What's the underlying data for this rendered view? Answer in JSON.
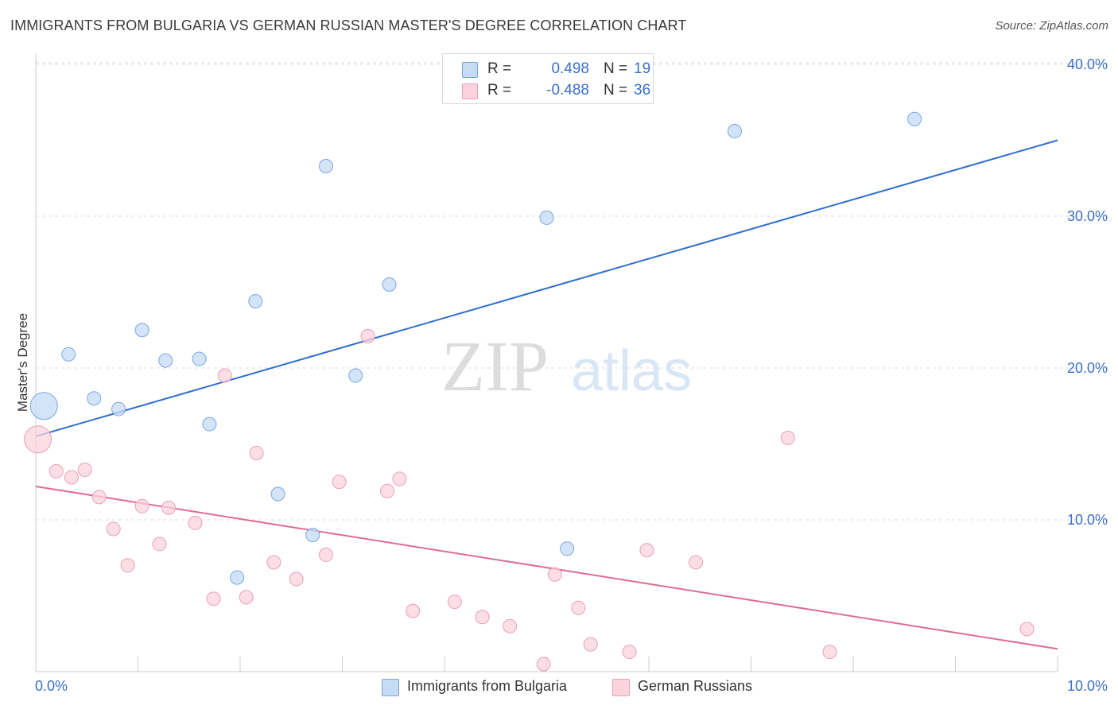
{
  "header": {
    "title": "IMMIGRANTS FROM BULGARIA VS GERMAN RUSSIAN MASTER'S DEGREE CORRELATION CHART",
    "source": "Source: ZipAtlas.com"
  },
  "watermark": {
    "zip": "ZIP",
    "atlas": "atlas"
  },
  "stats": [
    {
      "r_label": "R =",
      "r_value": "0.498",
      "n_label": "N =",
      "n_value": "19",
      "color": "#a9c8f0"
    },
    {
      "r_label": "R =",
      "r_value": "-0.488",
      "n_label": "N =",
      "n_value": "36",
      "color": "#f5b8c8"
    }
  ],
  "legend": [
    {
      "label": "Immigrants from Bulgaria",
      "color": "#a9c8f0"
    },
    {
      "label": "German Russians",
      "color": "#f5b8c8"
    }
  ],
  "chart_data": {
    "type": "scatter",
    "title": "IMMIGRANTS FROM BULGARIA VS GERMAN RUSSIAN MASTER'S DEGREE CORRELATION CHART",
    "xlabel": "",
    "ylabel": "Master's Degree",
    "xlim": [
      0,
      10
    ],
    "ylim": [
      0,
      42
    ],
    "x_tick_labels": [
      "0.0%",
      "10.0%"
    ],
    "y_ticks": [
      10,
      20,
      30,
      40
    ],
    "y_tick_labels": [
      "10.0%",
      "20.0%",
      "30.0%",
      "40.0%"
    ],
    "grid": true,
    "series": [
      {
        "name": "Immigrants from Bulgaria",
        "color": "#a9c8f0",
        "stroke": "#7aa6e0",
        "line_color": "#2e6fcc",
        "trend": {
          "x": [
            0,
            10
          ],
          "y": [
            15.5,
            35.0
          ]
        },
        "points": [
          {
            "x": 0.08,
            "y": 17.5,
            "big": true
          },
          {
            "x": 0.32,
            "y": 20.9
          },
          {
            "x": 0.57,
            "y": 18.0
          },
          {
            "x": 0.81,
            "y": 17.3
          },
          {
            "x": 1.04,
            "y": 22.5
          },
          {
            "x": 1.27,
            "y": 20.5
          },
          {
            "x": 1.6,
            "y": 20.6
          },
          {
            "x": 1.7,
            "y": 16.3
          },
          {
            "x": 2.15,
            "y": 24.4
          },
          {
            "x": 2.37,
            "y": 11.7
          },
          {
            "x": 1.97,
            "y": 6.2
          },
          {
            "x": 2.71,
            "y": 9.0
          },
          {
            "x": 2.84,
            "y": 33.3
          },
          {
            "x": 3.13,
            "y": 19.5
          },
          {
            "x": 3.46,
            "y": 25.5
          },
          {
            "x": 5.0,
            "y": 29.9
          },
          {
            "x": 5.2,
            "y": 8.1
          },
          {
            "x": 6.84,
            "y": 35.6
          },
          {
            "x": 8.6,
            "y": 36.4
          }
        ]
      },
      {
        "name": "German Russians",
        "color": "#f5b8c8",
        "stroke": "#eaa0b6",
        "line_color": "#e06b95",
        "trend": {
          "x": [
            0,
            10
          ],
          "y": [
            12.2,
            1.5
          ]
        },
        "points": [
          {
            "x": 0.02,
            "y": 15.3,
            "big": true
          },
          {
            "x": 0.2,
            "y": 13.2
          },
          {
            "x": 0.35,
            "y": 12.8
          },
          {
            "x": 0.48,
            "y": 13.3
          },
          {
            "x": 0.62,
            "y": 11.5
          },
          {
            "x": 0.76,
            "y": 9.4
          },
          {
            "x": 0.9,
            "y": 7.0
          },
          {
            "x": 1.04,
            "y": 10.9
          },
          {
            "x": 1.21,
            "y": 8.4
          },
          {
            "x": 1.3,
            "y": 10.8
          },
          {
            "x": 1.56,
            "y": 9.8
          },
          {
            "x": 1.74,
            "y": 4.8
          },
          {
            "x": 1.85,
            "y": 19.5
          },
          {
            "x": 2.06,
            "y": 4.9
          },
          {
            "x": 2.16,
            "y": 14.4
          },
          {
            "x": 2.33,
            "y": 7.2
          },
          {
            "x": 2.55,
            "y": 6.1
          },
          {
            "x": 2.84,
            "y": 7.7
          },
          {
            "x": 2.97,
            "y": 12.5
          },
          {
            "x": 3.25,
            "y": 22.1
          },
          {
            "x": 3.44,
            "y": 11.9
          },
          {
            "x": 3.56,
            "y": 12.7
          },
          {
            "x": 3.69,
            "y": 4.0
          },
          {
            "x": 4.1,
            "y": 4.6
          },
          {
            "x": 4.37,
            "y": 3.6
          },
          {
            "x": 4.64,
            "y": 3.0
          },
          {
            "x": 4.97,
            "y": 0.5
          },
          {
            "x": 5.08,
            "y": 6.4
          },
          {
            "x": 5.31,
            "y": 4.2
          },
          {
            "x": 5.43,
            "y": 1.8
          },
          {
            "x": 5.81,
            "y": 1.3
          },
          {
            "x": 5.98,
            "y": 8.0
          },
          {
            "x": 6.46,
            "y": 7.2
          },
          {
            "x": 7.36,
            "y": 15.4
          },
          {
            "x": 7.77,
            "y": 1.3
          },
          {
            "x": 9.7,
            "y": 2.8
          }
        ]
      }
    ]
  }
}
